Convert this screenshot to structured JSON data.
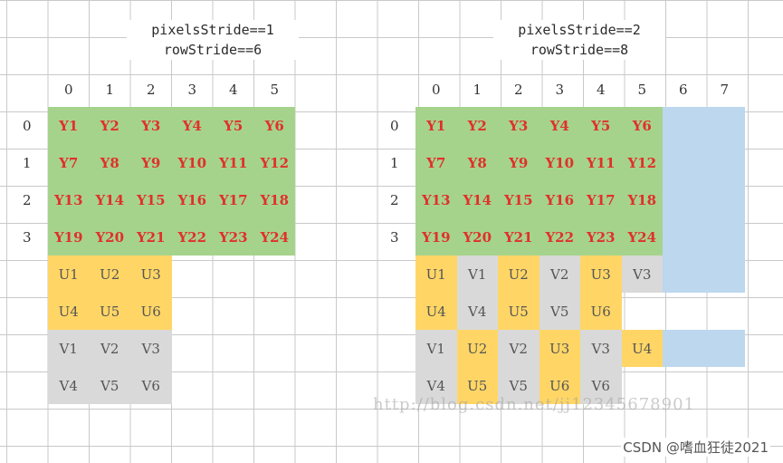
{
  "colors": {
    "y_fill": "#a6d38c",
    "u_fill": "#ffd666",
    "v_fill": "#d9d9d9",
    "pad_fill": "#bdd7ee",
    "y_text": "#e0302a",
    "uv_text": "#555555"
  },
  "left": {
    "title_line1": "pixelsStride==1",
    "title_line2": "rowStride==6",
    "col_headers": [
      "0",
      "1",
      "2",
      "3",
      "4",
      "5"
    ],
    "row_headers": [
      "0",
      "1",
      "2",
      "3"
    ],
    "y_rows": [
      [
        "Y1",
        "Y2",
        "Y3",
        "Y4",
        "Y5",
        "Y6"
      ],
      [
        "Y7",
        "Y8",
        "Y9",
        "Y10",
        "Y11",
        "Y12"
      ],
      [
        "Y13",
        "Y14",
        "Y15",
        "Y16",
        "Y17",
        "Y18"
      ],
      [
        "Y19",
        "Y20",
        "Y21",
        "Y22",
        "Y23",
        "Y24"
      ]
    ],
    "u_rows": [
      [
        "U1",
        "U2",
        "U3"
      ],
      [
        "U4",
        "U5",
        "U6"
      ]
    ],
    "v_rows": [
      [
        "V1",
        "V2",
        "V3"
      ],
      [
        "V4",
        "V5",
        "V6"
      ]
    ]
  },
  "right": {
    "title_line1": "pixelsStride==2",
    "title_line2": "rowStride==8",
    "col_headers": [
      "0",
      "1",
      "2",
      "3",
      "4",
      "5",
      "6",
      "7"
    ],
    "row_headers": [
      "0",
      "1",
      "2",
      "3"
    ],
    "y_rows": [
      [
        "Y1",
        "Y2",
        "Y3",
        "Y4",
        "Y5",
        "Y6"
      ],
      [
        "Y7",
        "Y8",
        "Y9",
        "Y10",
        "Y11",
        "Y12"
      ],
      [
        "Y13",
        "Y14",
        "Y15",
        "Y16",
        "Y17",
        "Y18"
      ],
      [
        "Y19",
        "Y20",
        "Y21",
        "Y22",
        "Y23",
        "Y24"
      ]
    ],
    "uv_rows": [
      [
        {
          "t": "U1",
          "k": "u"
        },
        {
          "t": "V1",
          "k": "v"
        },
        {
          "t": "U2",
          "k": "u"
        },
        {
          "t": "V2",
          "k": "v"
        },
        {
          "t": "U3",
          "k": "u"
        },
        {
          "t": "V3",
          "k": "v"
        }
      ],
      [
        {
          "t": "U4",
          "k": "u"
        },
        {
          "t": "V4",
          "k": "v"
        },
        {
          "t": "U5",
          "k": "u"
        },
        {
          "t": "V5",
          "k": "v"
        },
        {
          "t": "U6",
          "k": "u"
        }
      ],
      [
        {
          "t": "V1",
          "k": "v"
        },
        {
          "t": "U2",
          "k": "u"
        },
        {
          "t": "V2",
          "k": "v"
        },
        {
          "t": "U3",
          "k": "u"
        },
        {
          "t": "V3",
          "k": "v"
        },
        {
          "t": "U4",
          "k": "u"
        }
      ],
      [
        {
          "t": "V4",
          "k": "v"
        },
        {
          "t": "U5",
          "k": "u"
        },
        {
          "t": "V5",
          "k": "v"
        },
        {
          "t": "U6",
          "k": "u"
        },
        {
          "t": "V6",
          "k": "v"
        }
      ]
    ]
  },
  "watermark": "http://blog.csdn.net/jj12345678901",
  "credit": "CSDN @嗜血狂徒2021"
}
